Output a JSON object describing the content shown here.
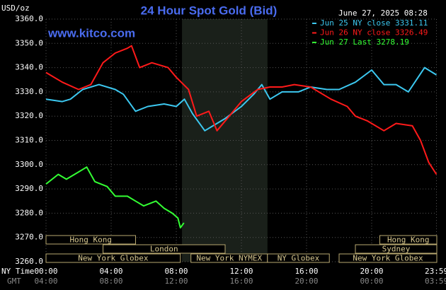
{
  "chart_data": {
    "type": "line",
    "title": "24 Hour Spot Gold (Bid)",
    "timestamp": "June 27, 2025 08:28",
    "site": "www.kitco.com",
    "y_label": "USD/oz",
    "x_label": "NY Time",
    "x2_label": "GMT",
    "xlim": [
      0,
      24
    ],
    "ylim": [
      3260,
      3360
    ],
    "grid": true,
    "legend": "top-right",
    "yticks": [
      {
        "value": 3260,
        "label": "3260.0"
      },
      {
        "value": 3270,
        "label": "3270.0"
      },
      {
        "value": 3280,
        "label": "3280.0"
      },
      {
        "value": 3290,
        "label": "3290.0"
      },
      {
        "value": 3300,
        "label": "3300.0"
      },
      {
        "value": 3310,
        "label": "3310.0"
      },
      {
        "value": 3320,
        "label": "3320.0"
      },
      {
        "value": 3330,
        "label": "3330.0"
      },
      {
        "value": 3340,
        "label": "3340.0"
      },
      {
        "value": 3350,
        "label": "3350.0"
      },
      {
        "value": 3360,
        "label": "3360.0"
      }
    ],
    "xticks": [
      {
        "value": 0,
        "label": "00:00"
      },
      {
        "value": 4,
        "label": "04:00"
      },
      {
        "value": 8,
        "label": "08:00"
      },
      {
        "value": 12,
        "label": "12:00"
      },
      {
        "value": 16,
        "label": "16:00"
      },
      {
        "value": 20,
        "label": "20:00"
      },
      {
        "value": 23.98,
        "label": "23:59"
      }
    ],
    "x2tick_labels": [
      "04:00",
      "08:00",
      "12:00",
      "16:00",
      "20:00",
      "00:00",
      "03:59"
    ],
    "shaded_range": [
      8.35,
      13.6
    ],
    "sessions": [
      {
        "label": "Hong Kong",
        "row": 1,
        "start": 0,
        "end": 5.5
      },
      {
        "label": "Hong Kong",
        "row": 1,
        "start": 20.5,
        "end": 24
      },
      {
        "label": "London",
        "row": 2,
        "start": 3.5,
        "end": 11
      },
      {
        "label": "Sydney",
        "row": 2,
        "start": 19,
        "end": 24
      },
      {
        "label": "New York Globex",
        "row": 3,
        "start": 0,
        "end": 8.25
      },
      {
        "label": "New York NYMEX",
        "row": 3,
        "start": 8.9,
        "end": 13.6
      },
      {
        "label": "NY Globex",
        "row": 3,
        "start": 13.6,
        "end": 17.4
      },
      {
        "label": "New York Globex",
        "row": 3,
        "start": 18,
        "end": 24
      }
    ],
    "series": [
      {
        "name": "Jun 25 NY close 3331.11",
        "color": "#3cc8f0",
        "x": [
          0,
          1,
          1.5,
          2.25,
          3.25,
          4.25,
          4.75,
          5.5,
          6.25,
          7.25,
          8,
          8.5,
          9,
          9.75,
          10.25,
          11,
          12,
          12.75,
          13.25,
          13.75,
          14.5,
          15.5,
          16.25,
          17.25,
          18,
          19,
          20,
          20.75,
          21.5,
          22.25,
          23.25,
          23.98
        ],
        "values": [
          3327,
          3326,
          3327,
          3331,
          3333,
          3331,
          3329,
          3322,
          3324,
          3325,
          3324,
          3327,
          3321,
          3314,
          3316,
          3319,
          3324,
          3329,
          3333,
          3327,
          3330,
          3330,
          3332,
          3331,
          3331,
          3334,
          3339,
          3333,
          3333,
          3330,
          3340,
          3337
        ]
      },
      {
        "name": "Jun 26 NY close 3326.49",
        "color": "#ff1a1a",
        "x": [
          0,
          1,
          2,
          2.75,
          3.5,
          4.25,
          5,
          5.25,
          5.75,
          6.5,
          7.5,
          8,
          8.75,
          9.25,
          10,
          10.5,
          11.25,
          12,
          13,
          13.75,
          14.5,
          15.25,
          16.25,
          17.5,
          18.5,
          19,
          19.75,
          20.75,
          21.5,
          22.5,
          23,
          23.5,
          23.98
        ],
        "values": [
          3338,
          3334,
          3331,
          3333,
          3342,
          3346,
          3348,
          3349,
          3340,
          3342,
          3340,
          3336,
          3331,
          3320,
          3322,
          3314,
          3320,
          3326,
          3331,
          3332,
          3332,
          3333,
          3332,
          3327,
          3324,
          3320,
          3318,
          3314,
          3317,
          3316,
          3310,
          3301,
          3296
        ]
      },
      {
        "name": "Jun 27 Last 3278.19",
        "color": "#33ff33",
        "x": [
          0,
          0.75,
          1.25,
          2,
          2.5,
          3,
          3.75,
          4.25,
          5,
          5.5,
          6,
          6.75,
          7.25,
          7.75,
          8.1,
          8.25,
          8.47
        ],
        "values": [
          3292,
          3296,
          3294,
          3297,
          3299,
          3293,
          3291,
          3287,
          3287,
          3285,
          3283,
          3285,
          3282,
          3280,
          3278,
          3274,
          3276
        ]
      }
    ]
  }
}
